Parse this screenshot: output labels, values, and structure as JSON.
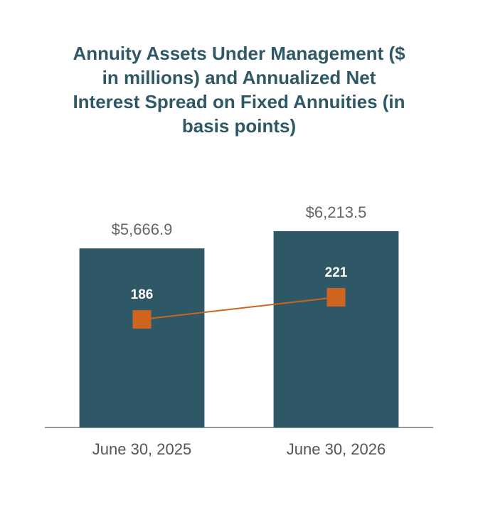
{
  "chart_data": {
    "type": "bar",
    "title": "Annuity Assets Under Management ($ in millions) and Annualized Net Interest Spread on Fixed Annuities (in basis points)",
    "categories": [
      "June 30, 2025",
      "June 30, 2026"
    ],
    "ylim": [
      0,
      7000
    ],
    "y2lim": [
      15,
      365
    ],
    "series": [
      {
        "type": "bar",
        "color": "#2f5866",
        "values": [
          5666.9,
          6213.5
        ],
        "value_labels": [
          "$5,666.9",
          "$6,213.5"
        ]
      },
      {
        "type": "line",
        "axis": "y2",
        "color": "#cf6420",
        "values": [
          186,
          221
        ]
      }
    ]
  }
}
